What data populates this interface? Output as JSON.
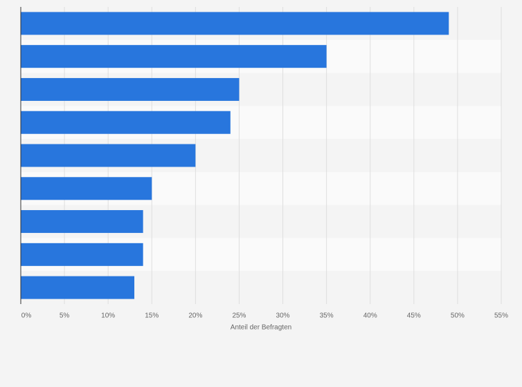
{
  "chart_data": {
    "type": "bar",
    "orientation": "horizontal",
    "categories": [
      null,
      null,
      null,
      null,
      null,
      null,
      null,
      null,
      null
    ],
    "values": [
      49,
      35,
      25,
      24,
      20,
      15,
      14,
      14,
      13
    ],
    "color": "#2876dd",
    "x_label": "Anteil der Befragten",
    "xlim": [
      0,
      55
    ],
    "xticks": [
      {
        "value": 0,
        "label": "0%"
      },
      {
        "value": 5,
        "label": "5%"
      },
      {
        "value": 10,
        "label": "10%"
      },
      {
        "value": 15,
        "label": "15%"
      },
      {
        "value": 20,
        "label": "20%"
      },
      {
        "value": 25,
        "label": "25%"
      },
      {
        "value": 30,
        "label": "30%"
      },
      {
        "value": 35,
        "label": "35%"
      },
      {
        "value": 40,
        "label": "40%"
      },
      {
        "value": 45,
        "label": "45%"
      },
      {
        "value": 50,
        "label": "50%"
      },
      {
        "value": 55,
        "label": "55%"
      }
    ],
    "grid": true
  }
}
